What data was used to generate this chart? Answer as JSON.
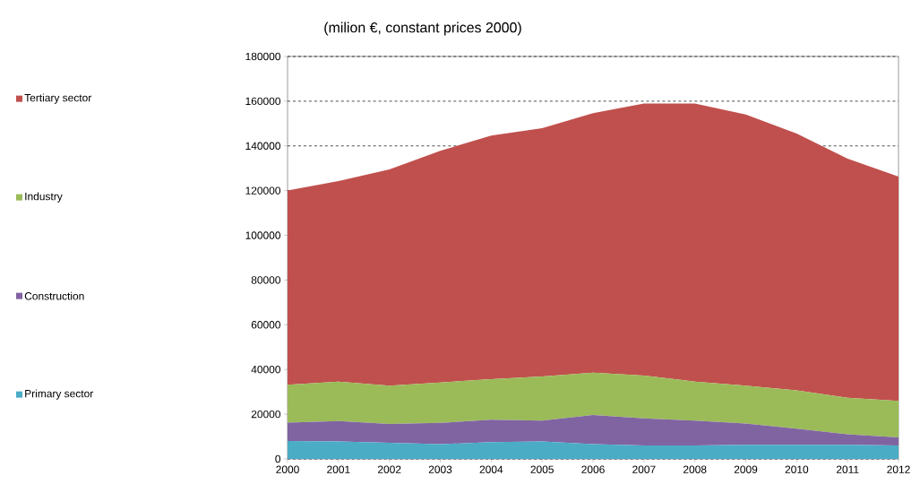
{
  "chart_data": {
    "type": "area",
    "title": "(milion €, constant prices 2000)",
    "stacked": true,
    "x": [
      2000,
      2001,
      2002,
      2003,
      2004,
      2005,
      2006,
      2007,
      2008,
      2009,
      2010,
      2011,
      2012
    ],
    "series": [
      {
        "name": "Primary sector",
        "color": "#4bacc6",
        "values": [
          8000,
          7800,
          7200,
          6600,
          7500,
          7800,
          6600,
          6000,
          6000,
          6300,
          6300,
          6300,
          6000
        ]
      },
      {
        "name": "Construction",
        "color": "#8064a2",
        "values": [
          8200,
          9100,
          8400,
          9500,
          10000,
          9300,
          13000,
          12100,
          11100,
          9500,
          7200,
          4700,
          3600
        ]
      },
      {
        "name": "Industry",
        "color": "#9bbb59",
        "values": [
          17000,
          17700,
          17200,
          18100,
          18200,
          19800,
          19000,
          19200,
          17500,
          17000,
          17200,
          16400,
          16400
        ]
      },
      {
        "name": "Tertiary sector",
        "color": "#c0504d",
        "values": [
          86900,
          89700,
          96700,
          103600,
          108900,
          111000,
          116000,
          121700,
          124400,
          121200,
          114800,
          106900,
          100300
        ]
      }
    ],
    "xlim": [
      2000,
      2012
    ],
    "ylim": [
      0,
      180000
    ],
    "xticks": [
      2000,
      2001,
      2002,
      2003,
      2004,
      2005,
      2006,
      2007,
      2008,
      2009,
      2010,
      2011,
      2012
    ],
    "yticks": [
      0,
      20000,
      40000,
      60000,
      80000,
      100000,
      120000,
      140000,
      160000,
      180000
    ],
    "grid": "y",
    "legend": "left"
  }
}
